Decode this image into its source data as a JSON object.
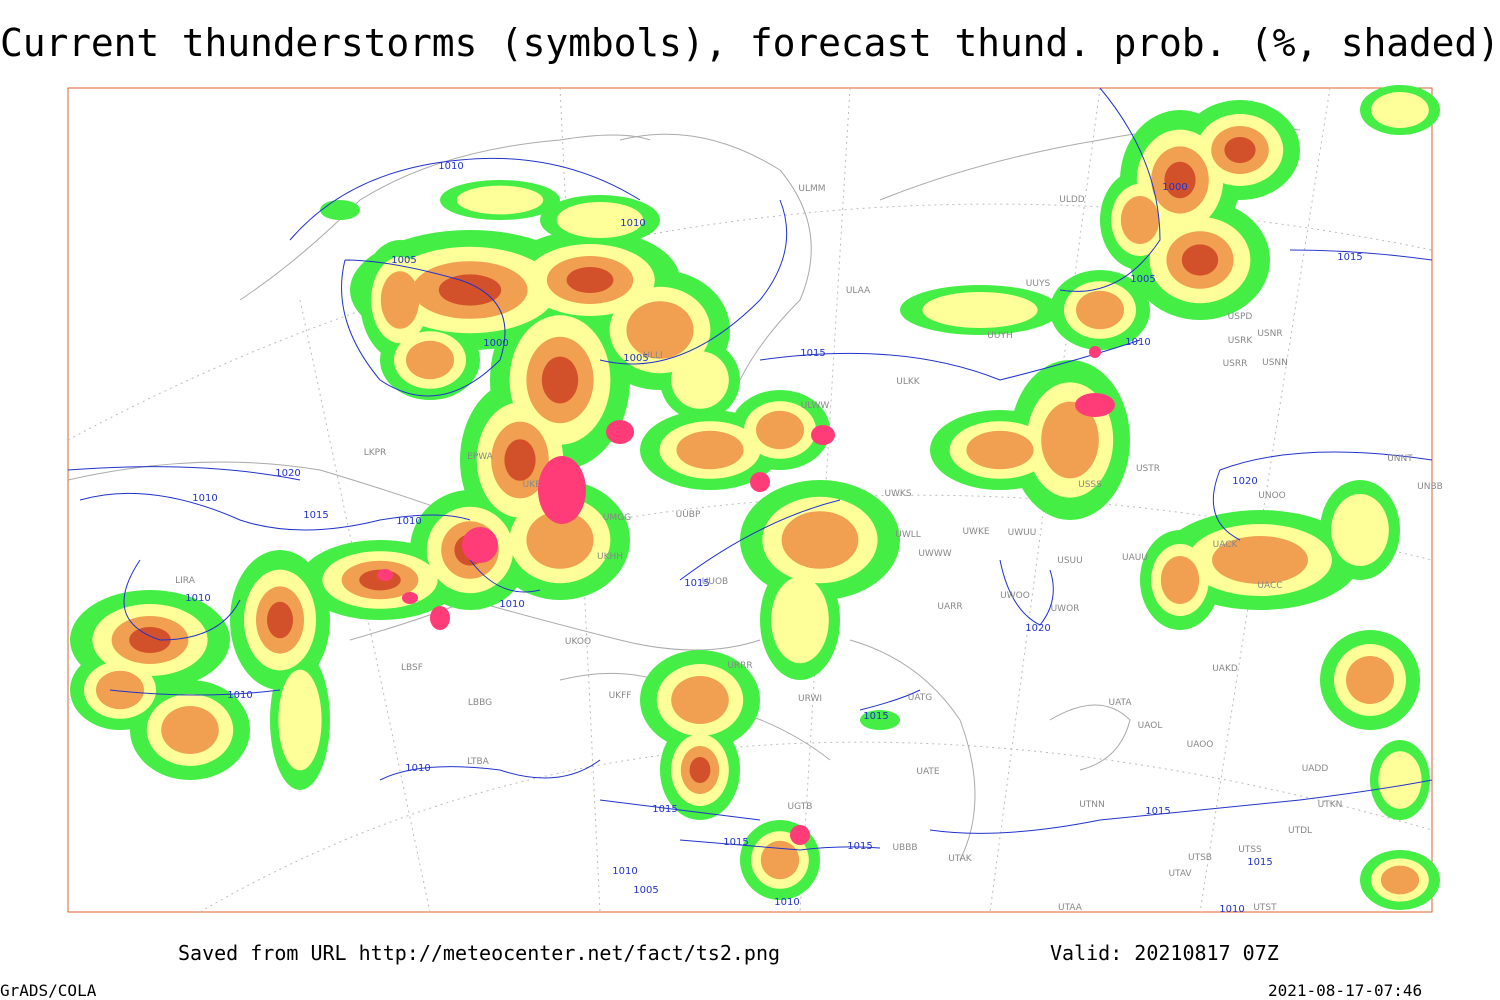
{
  "header": {
    "title": "Current thunderstorms (symbols), forecast thund. prob. (%, shaded)"
  },
  "map": {
    "isobar_labels": [
      "1010",
      "1010",
      "1005",
      "1000",
      "1005",
      "1015",
      "1000",
      "1005",
      "1010",
      "1015",
      "1020",
      "1020",
      "1010",
      "1015",
      "1010",
      "1010",
      "1010",
      "1015",
      "1010",
      "1015",
      "1020",
      "1010",
      "1015",
      "1015",
      "1015",
      "1015",
      "1010",
      "1005",
      "1010",
      "1010",
      "1015"
    ],
    "stations": [
      "ULMM",
      "ULDD",
      "ULAA",
      "UUYS",
      "UUYH",
      "ULKK",
      "ULWW",
      "UWKS",
      "UWKE",
      "UWWW",
      "UWUU",
      "UWLL",
      "USSS",
      "USTR",
      "UUOB",
      "UKBB",
      "UMGG",
      "UUBP",
      "UKHH",
      "UKOO",
      "UKFF",
      "URRR",
      "URWI",
      "UATG",
      "UATA",
      "UAOL",
      "UAOO",
      "UADD",
      "UATE",
      "UTNN",
      "UGTB",
      "LBSF",
      "LBBG",
      "LTBA",
      "LIRA",
      "LKPR",
      "EPWA",
      "ULLI",
      "UACC",
      "UAKD",
      "USRR",
      "USNN",
      "USRK",
      "USNR",
      "USPD",
      "UNNT",
      "UNBB",
      "UNOO",
      "UACK",
      "UAUU",
      "USUU",
      "UWOO",
      "UWOR",
      "UARR",
      "UTAK",
      "UTAA",
      "UTST",
      "UTSS",
      "UTSB",
      "UTAV",
      "UTDL",
      "UTKN",
      "UBBB"
    ]
  },
  "footer": {
    "source": "Saved from URL http://meteocenter.net/fact/ts2.png",
    "valid": "Valid: 20210817 07Z",
    "software": "GrADS/COLA",
    "timestamp": "2021-08-17-07:46"
  }
}
